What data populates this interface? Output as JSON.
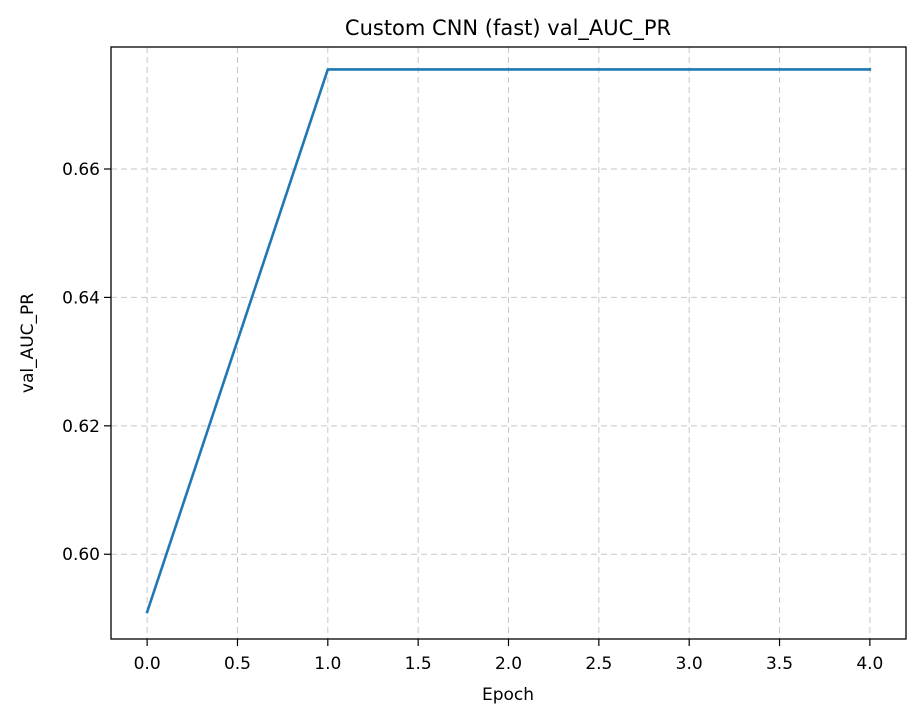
{
  "chart_data": {
    "type": "line",
    "title": "Custom CNN (fast) val_AUC_PR",
    "xlabel": "Epoch",
    "ylabel": "val_AUC_PR",
    "xlim": [
      -0.2,
      4.2
    ],
    "ylim": [
      0.5868,
      0.679
    ],
    "xticks": [
      0.0,
      0.5,
      1.0,
      1.5,
      2.0,
      2.5,
      3.0,
      3.5,
      4.0
    ],
    "xtick_labels": [
      "0.0",
      "0.5",
      "1.0",
      "1.5",
      "2.0",
      "2.5",
      "3.0",
      "3.5",
      "4.0"
    ],
    "yticks": [
      0.6,
      0.62,
      0.64,
      0.66
    ],
    "ytick_labels": [
      "0.60",
      "0.62",
      "0.64",
      "0.66"
    ],
    "grid": true,
    "series": [
      {
        "color": "#1f77b4",
        "x": [
          0,
          1,
          2,
          3,
          4
        ],
        "y": [
          0.591,
          0.6755,
          0.6755,
          0.6755,
          0.6755
        ]
      }
    ]
  }
}
